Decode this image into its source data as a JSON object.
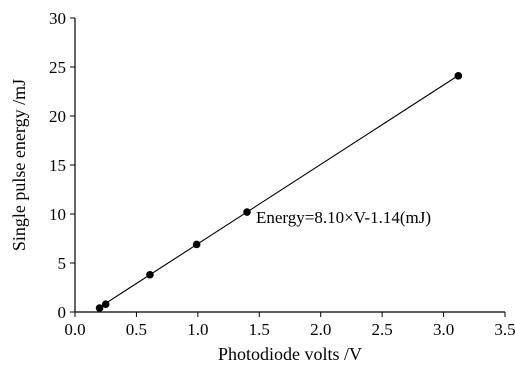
{
  "chart_data": {
    "type": "scatter",
    "xlabel": "Photodiode volts /V",
    "ylabel": "Single  pulse energy /mJ",
    "xlim": [
      0,
      3.5
    ],
    "ylim": [
      0,
      30
    ],
    "x_ticks": [
      "0.0",
      "0.5",
      "1.0",
      "1.5",
      "2.0",
      "2.5",
      "3.0",
      "3.5"
    ],
    "y_ticks": [
      "0",
      "5",
      "10",
      "15",
      "20",
      "25",
      "30"
    ],
    "grid": false,
    "legend": "none",
    "series": [
      {
        "points": [
          {
            "x": 0.2,
            "y": 0.4
          },
          {
            "x": 0.25,
            "y": 0.8
          },
          {
            "x": 0.61,
            "y": 3.8
          },
          {
            "x": 0.99,
            "y": 6.9
          },
          {
            "x": 1.4,
            "y": 10.2
          },
          {
            "x": 3.12,
            "y": 24.1
          }
        ],
        "color": "#000000"
      }
    ],
    "fit_line": {
      "slope": 8.1,
      "intercept": -1.14,
      "x_range": [
        0.2,
        3.12
      ],
      "color": "#000000"
    },
    "annotation": "Energy=8.10×V-1.14(mJ)"
  }
}
